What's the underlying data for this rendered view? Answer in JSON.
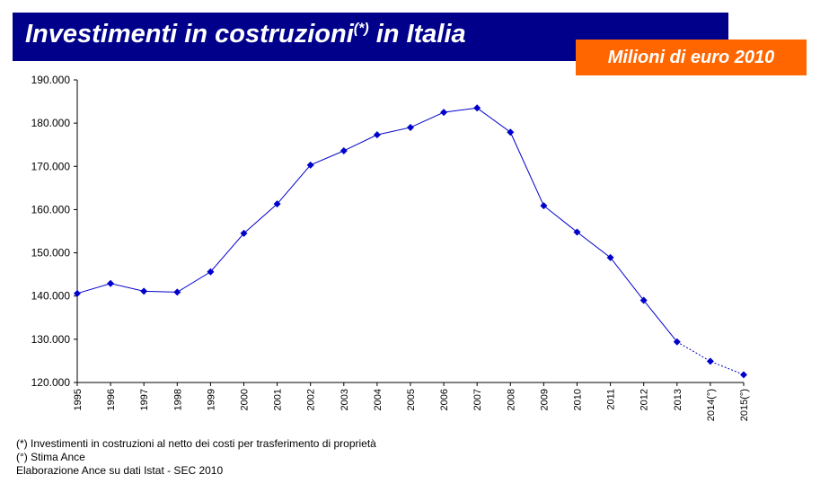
{
  "header": {
    "title": "Investimenti in costruzioni",
    "title_sup": "(*)",
    "title_suffix": " in Italia",
    "unit_badge": "Milioni di euro 2010"
  },
  "colors": {
    "title_bg": "#00008b",
    "badge_bg": "#ff6600",
    "series": "#0000cc"
  },
  "chart_data": {
    "type": "line",
    "categories": [
      "1995",
      "1996",
      "1997",
      "1998",
      "1999",
      "2000",
      "2001",
      "2002",
      "2003",
      "2004",
      "2005",
      "2006",
      "2007",
      "2008",
      "2009",
      "2010",
      "2011",
      "2012",
      "2013",
      "2014(°)",
      "2015(°)"
    ],
    "values": [
      140600,
      142900,
      141100,
      140900,
      145600,
      154500,
      161300,
      170300,
      173600,
      177300,
      179000,
      182500,
      183500,
      177900,
      160900,
      154800,
      148900,
      139000,
      129400,
      124900,
      121800
    ],
    "estimated_from_index": 18,
    "ylim": [
      120000,
      190000
    ],
    "yticks": [
      "190.000",
      "180.000",
      "170.000",
      "160.000",
      "150.000",
      "140.000",
      "130.000",
      "120.000"
    ],
    "ytick_values": [
      190000,
      180000,
      170000,
      160000,
      150000,
      140000,
      130000,
      120000
    ],
    "grid": false,
    "legend": "none",
    "line_style_estimates": "dotted"
  },
  "notes": {
    "note1": "(*) Investimenti in costruzioni al netto dei costi per trasferimento di proprietà",
    "note2": "(°) Stima Ance",
    "source": "Elaborazione Ance su dati Istat - SEC 2010"
  }
}
